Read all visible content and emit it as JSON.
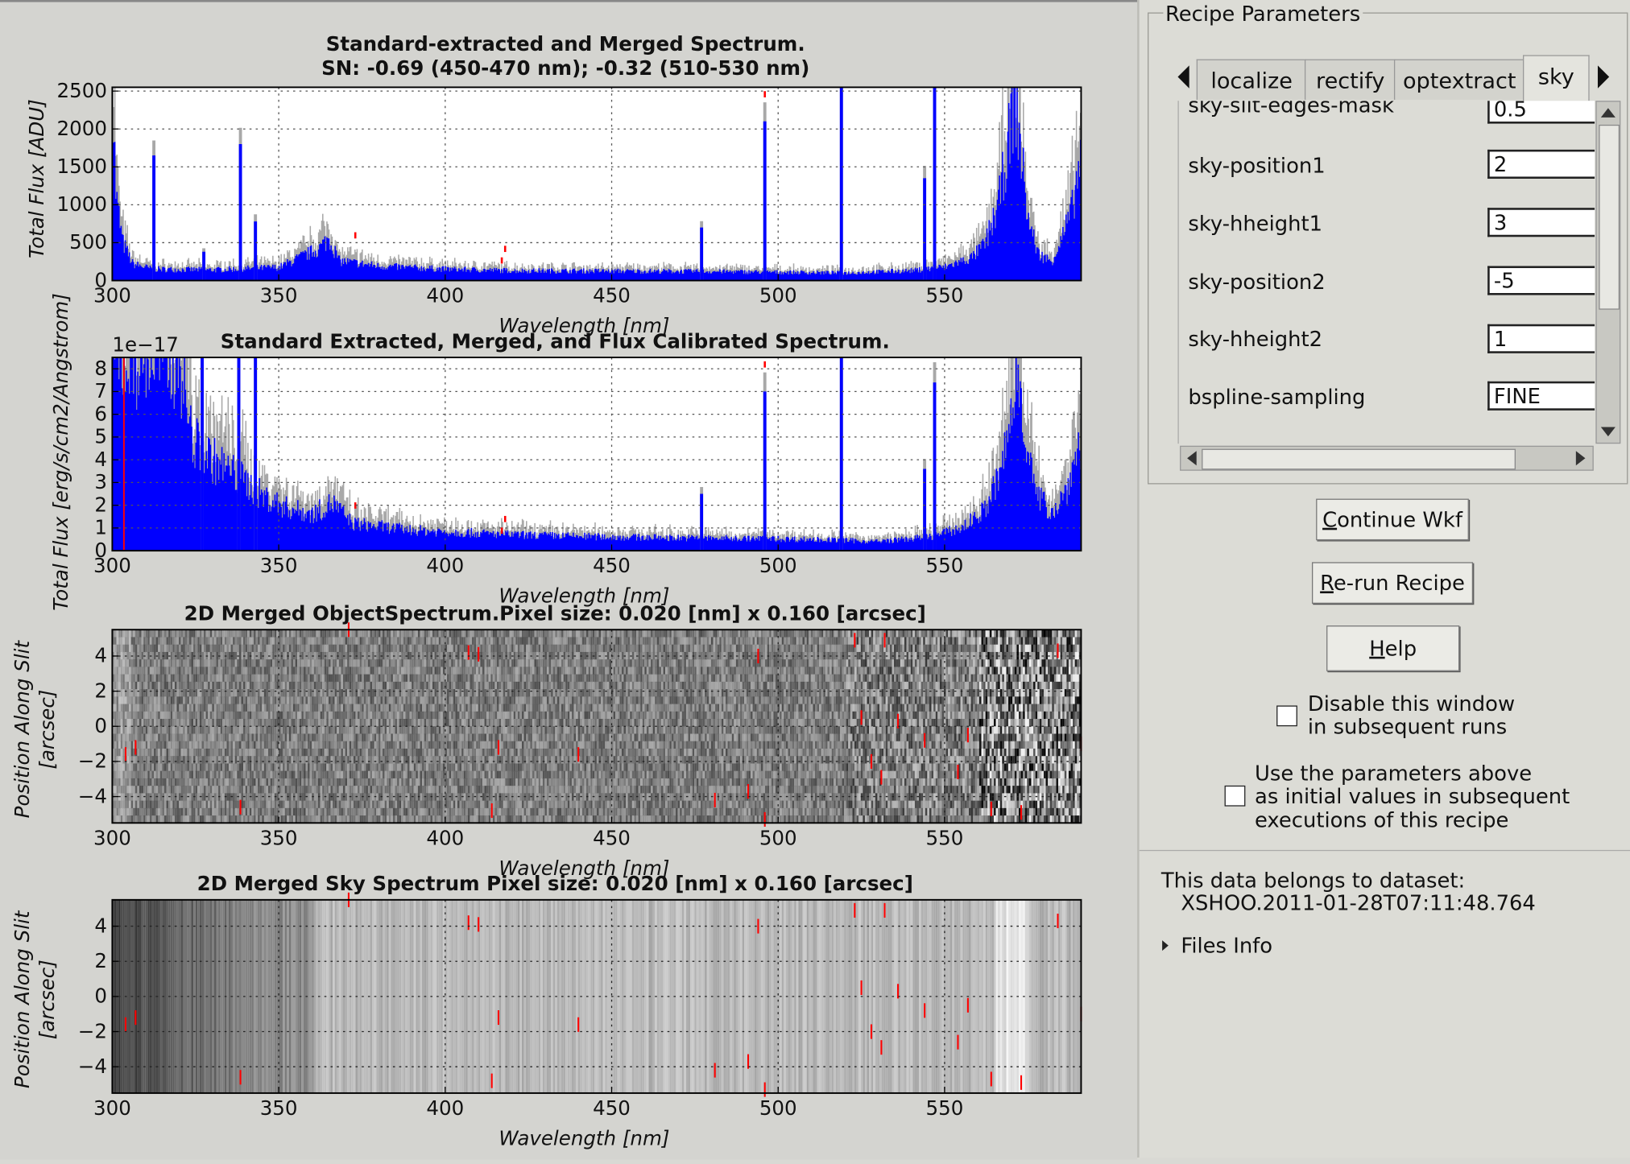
{
  "plots": [
    {
      "title": "Standard-extracted and Merged Spectrum.",
      "subtitle": "SN: -0.69 (450-470 nm); -0.32 (510-530 nm)",
      "xlabel": "Wavelength [nm]",
      "ylabel": "Total Flux [ADU]",
      "xticks": [
        "300",
        "350",
        "400",
        "450",
        "500",
        "550"
      ],
      "yticks": [
        "0",
        "500",
        "1000",
        "1500",
        "2000",
        "2500"
      ],
      "offset_text": ""
    },
    {
      "title": "Standard Extracted, Merged, and Flux Calibrated Spectrum.",
      "subtitle": "",
      "xlabel": "Wavelength [nm]",
      "ylabel": "Total Flux [erg/s/cm2/Angstrom]",
      "xticks": [
        "300",
        "350",
        "400",
        "450",
        "500",
        "550"
      ],
      "yticks": [
        "0",
        "1",
        "2",
        "3",
        "4",
        "5",
        "6",
        "7",
        "8"
      ],
      "offset_text": "1e−17"
    },
    {
      "title": "2D Merged ObjectSpectrum.Pixel size: 0.020 [nm] x 0.160 [arcsec]",
      "subtitle": "",
      "xlabel": "Wavelength [nm]",
      "ylabel": "Position Along Slit",
      "ylabel2": "[arcsec]",
      "xticks": [
        "300",
        "350",
        "400",
        "450",
        "500",
        "550"
      ],
      "yticks": [
        "4",
        "2",
        "0",
        "−2",
        "−4"
      ],
      "offset_text": ""
    },
    {
      "title": "2D Merged Sky Spectrum Pixel size: 0.020 [nm] x 0.160 [arcsec]",
      "subtitle": "",
      "xlabel": "Wavelength [nm]",
      "ylabel": "Position Along Slit",
      "ylabel2": "[arcsec]",
      "xticks": [
        "300",
        "350",
        "400",
        "450",
        "500",
        "550"
      ],
      "yticks": [
        "4",
        "2",
        "0",
        "−2",
        "−4"
      ],
      "offset_text": ""
    }
  ],
  "chart_data": [
    {
      "type": "area",
      "title": "Standard-extracted and Merged Spectrum.",
      "subtitle": "SN: -0.69 (450-470 nm); -0.32 (510-530 nm)",
      "xlabel": "Wavelength [nm]",
      "ylabel": "Total Flux [ADU]",
      "xlim": [
        300,
        591
      ],
      "ylim": [
        0,
        2550
      ],
      "grid": true,
      "colors": {
        "flux": "#0000ff",
        "error": "#a8a8a8",
        "bad": "#ff0000"
      },
      "continuum": [
        [
          300,
          2500
        ],
        [
          301,
          1100
        ],
        [
          303,
          500
        ],
        [
          306,
          220
        ],
        [
          312,
          150
        ],
        [
          330,
          140
        ],
        [
          350,
          175
        ],
        [
          362,
          420
        ],
        [
          365,
          560
        ],
        [
          368,
          260
        ],
        [
          380,
          190
        ],
        [
          400,
          150
        ],
        [
          420,
          130
        ],
        [
          450,
          125
        ],
        [
          480,
          120
        ],
        [
          500,
          110
        ],
        [
          520,
          100
        ],
        [
          540,
          130
        ],
        [
          550,
          180
        ],
        [
          558,
          300
        ],
        [
          562,
          480
        ],
        [
          566,
          1000
        ],
        [
          569,
          1800
        ],
        [
          571,
          2480
        ],
        [
          573,
          1600
        ],
        [
          575,
          800
        ],
        [
          578,
          350
        ],
        [
          582,
          250
        ],
        [
          585,
          550
        ],
        [
          588,
          900
        ],
        [
          591,
          1700
        ]
      ],
      "lines": [
        [
          312.5,
          1650
        ],
        [
          327.5,
          380
        ],
        [
          338.5,
          1800
        ],
        [
          343,
          780
        ],
        [
          477,
          700
        ],
        [
          496,
          2100
        ],
        [
          519,
          2550
        ],
        [
          544,
          1350
        ],
        [
          547,
          2550
        ]
      ]
    },
    {
      "type": "area",
      "title": "Standard Extracted, Merged, and Flux Calibrated Spectrum.",
      "xlabel": "Wavelength [nm]",
      "ylabel": "Total Flux [erg/s/cm2/Angstrom]",
      "offset_text": "1e−17",
      "xlim": [
        300,
        591
      ],
      "ylim": [
        0,
        8.5
      ],
      "grid": true,
      "colors": {
        "flux": "#0000ff",
        "error": "#a8a8a8",
        "bad": "#ff0000"
      },
      "continuum": [
        [
          300,
          8.5
        ],
        [
          320,
          8.5
        ],
        [
          322,
          6.5
        ],
        [
          324,
          4.8
        ],
        [
          330,
          4.0
        ],
        [
          340,
          3.0
        ],
        [
          345,
          2.4
        ],
        [
          352,
          1.9
        ],
        [
          360,
          1.6
        ],
        [
          366,
          2.1
        ],
        [
          372,
          1.2
        ],
        [
          390,
          0.9
        ],
        [
          420,
          0.7
        ],
        [
          450,
          0.6
        ],
        [
          480,
          0.55
        ],
        [
          510,
          0.5
        ],
        [
          530,
          0.4
        ],
        [
          545,
          0.6
        ],
        [
          555,
          1.0
        ],
        [
          562,
          1.8
        ],
        [
          567,
          3.5
        ],
        [
          570,
          6.0
        ],
        [
          572,
          8.0
        ],
        [
          574,
          5.5
        ],
        [
          577,
          2.5
        ],
        [
          582,
          1.7
        ],
        [
          586,
          2.5
        ],
        [
          591,
          5.0
        ]
      ],
      "lines": [
        [
          327,
          8.5
        ],
        [
          338,
          8.5
        ],
        [
          343,
          8.5
        ],
        [
          477,
          2.5
        ],
        [
          496,
          7.0
        ],
        [
          519,
          8.5
        ],
        [
          544,
          3.6
        ],
        [
          547,
          7.4
        ]
      ]
    },
    {
      "type": "heatmap",
      "title": "2D Merged ObjectSpectrum.Pixel size: 0.020 [nm] x 0.160 [arcsec]",
      "xlabel": "Wavelength [nm]",
      "ylabel": "Position Along Slit [arcsec]",
      "xlim": [
        300,
        591
      ],
      "ylim": [
        -5.5,
        5.5
      ],
      "grid": true,
      "colormap": "gray",
      "bad_pixels": [
        [
          304,
          -1.6
        ],
        [
          307,
          -1.2
        ],
        [
          338.5,
          -4.6
        ],
        [
          371,
          5.5
        ],
        [
          407,
          4.2
        ],
        [
          410,
          4.1
        ],
        [
          414,
          -4.8
        ],
        [
          416,
          -1.2
        ],
        [
          440,
          -1.6
        ],
        [
          481,
          -4.2
        ],
        [
          491,
          -3.7
        ],
        [
          494,
          4
        ],
        [
          496,
          -5.3
        ],
        [
          523,
          4.9
        ],
        [
          525,
          0.5
        ],
        [
          528,
          -2.0
        ],
        [
          531,
          -2.9
        ],
        [
          532,
          4.9
        ],
        [
          536,
          0.3
        ],
        [
          544,
          -0.8
        ],
        [
          554,
          -2.6
        ],
        [
          557,
          -0.5
        ],
        [
          564,
          -4.7
        ],
        [
          573,
          -4.9
        ],
        [
          584,
          4.3
        ],
        [
          591,
          -1.0
        ]
      ]
    },
    {
      "type": "heatmap",
      "title": "2D Merged Sky Spectrum Pixel size: 0.020 [nm] x 0.160 [arcsec]",
      "xlabel": "Wavelength [nm]",
      "ylabel": "Position Along Slit [arcsec]",
      "xlim": [
        300,
        591
      ],
      "ylim": [
        -5.5,
        5.5
      ],
      "grid": true,
      "colormap": "gray",
      "bad_pixels": [
        [
          304,
          -1.6
        ],
        [
          307,
          -1.2
        ],
        [
          338.5,
          -4.6
        ],
        [
          371,
          5.5
        ],
        [
          407,
          4.2
        ],
        [
          410,
          4.1
        ],
        [
          414,
          -4.8
        ],
        [
          416,
          -1.2
        ],
        [
          440,
          -1.6
        ],
        [
          481,
          -4.2
        ],
        [
          491,
          -3.7
        ],
        [
          494,
          4
        ],
        [
          496,
          -5.3
        ],
        [
          523,
          4.9
        ],
        [
          525,
          0.5
        ],
        [
          528,
          -2.0
        ],
        [
          531,
          -2.9
        ],
        [
          532,
          4.9
        ],
        [
          536,
          0.3
        ],
        [
          544,
          -0.8
        ],
        [
          554,
          -2.6
        ],
        [
          557,
          -0.5
        ],
        [
          564,
          -4.7
        ],
        [
          573,
          -4.9
        ],
        [
          584,
          4.3
        ],
        [
          591,
          -1.0
        ]
      ]
    }
  ],
  "recipe": {
    "group_title": "Recipe Parameters",
    "tabs": [
      "localize",
      "rectify",
      "optextract",
      "sky"
    ],
    "active_tab": "sky",
    "params": [
      {
        "label": "sky-slit-edges-mask",
        "value": "0.5"
      },
      {
        "label": "sky-position1",
        "value": "2"
      },
      {
        "label": "sky-hheight1",
        "value": "3"
      },
      {
        "label": "sky-position2",
        "value": "-5"
      },
      {
        "label": "sky-hheight2",
        "value": "1"
      },
      {
        "label": "bspline-sampling",
        "value": "FINE"
      }
    ]
  },
  "buttons": {
    "continue": {
      "mnemonic": "C",
      "rest": "ontinue Wkf"
    },
    "rerun": {
      "mnemonic": "R",
      "rest": "e-run Recipe"
    },
    "help": {
      "mnemonic": "H",
      "rest": "elp"
    }
  },
  "options": {
    "disable_line1": "Disable this window",
    "disable_line2": "in subsequent runs",
    "use_line1": "Use the parameters above",
    "use_line2": "as initial values in subsequent",
    "use_line3": "executions of this recipe"
  },
  "dataset": {
    "label": "This data belongs to dataset:",
    "name": "XSHOO.2011-01-28T07:11:48.764",
    "files_info": "Files Info"
  }
}
